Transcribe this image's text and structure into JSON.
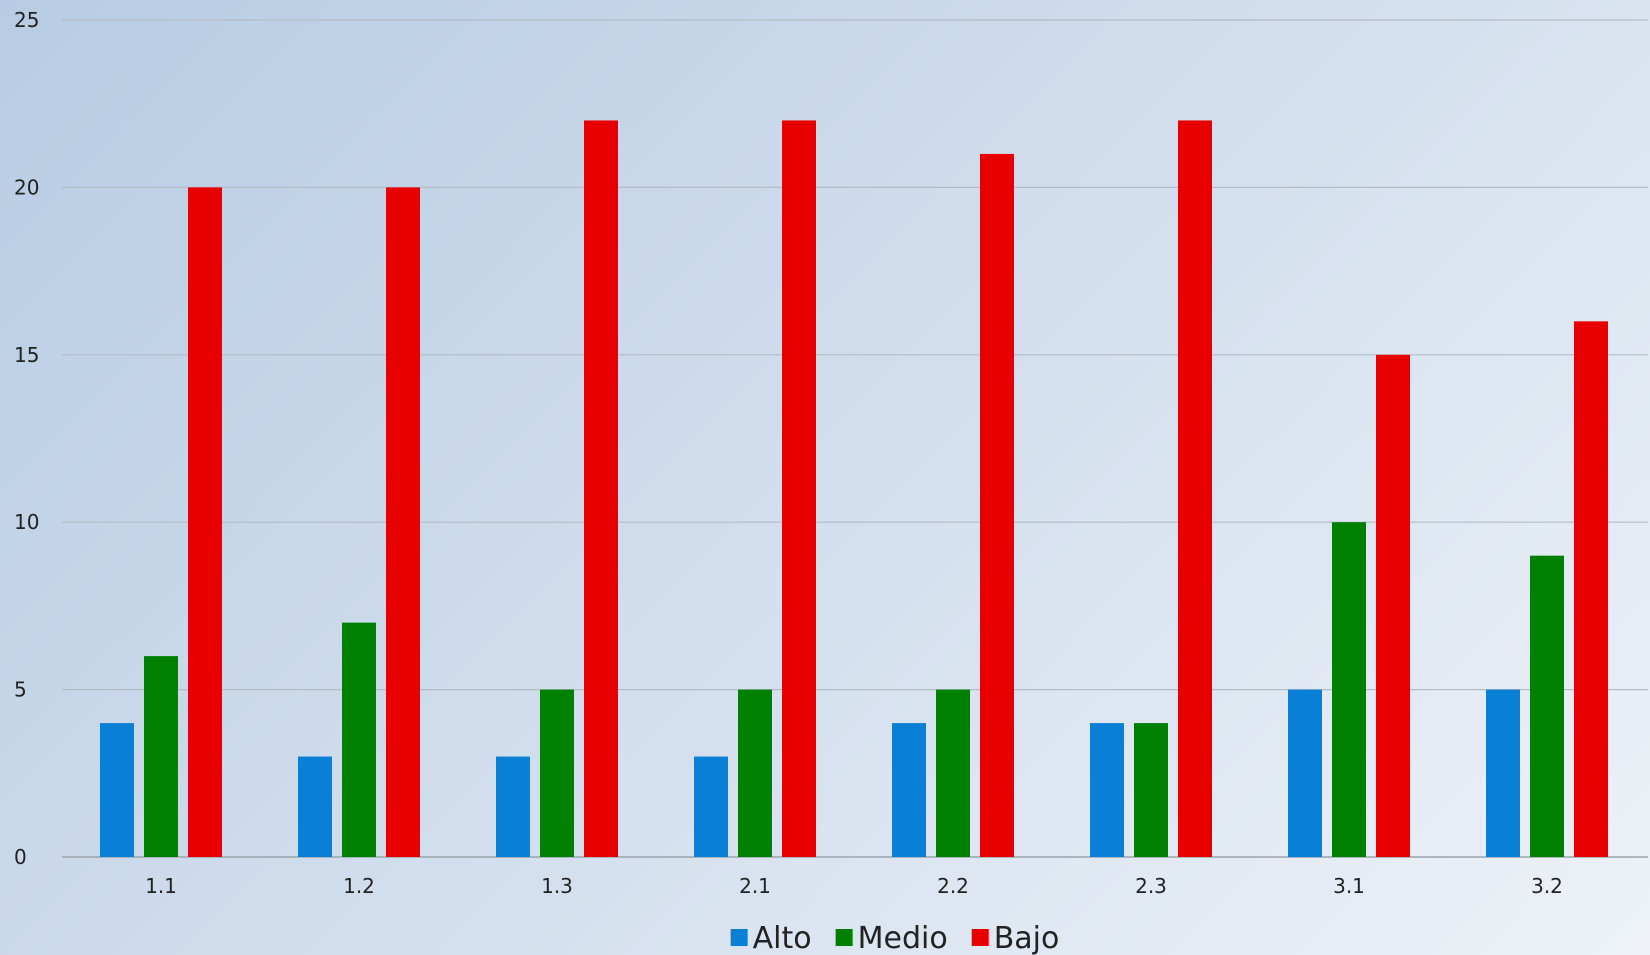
{
  "chart_data": {
    "type": "bar",
    "title": "",
    "xlabel": "",
    "ylabel": "",
    "categories": [
      "1.1",
      "1.2",
      "1.3",
      "2.1",
      "2.2",
      "2.3",
      "3.1",
      "3.2"
    ],
    "series": [
      {
        "name": "Alto",
        "color": "#0a7fd6",
        "values": [
          4,
          3,
          3,
          3,
          4,
          4,
          5,
          5
        ]
      },
      {
        "name": "Medio",
        "color": "#008000",
        "values": [
          6,
          7,
          5,
          5,
          5,
          4,
          10,
          9
        ]
      },
      {
        "name": "Bajo",
        "color": "#e80000",
        "values": [
          20,
          20,
          22,
          22,
          21,
          22,
          15,
          16
        ]
      }
    ],
    "ylim": [
      0,
      25
    ],
    "yticks": [
      0,
      5,
      10,
      15,
      20,
      25
    ],
    "grid": true,
    "legend": "bottom-center"
  }
}
